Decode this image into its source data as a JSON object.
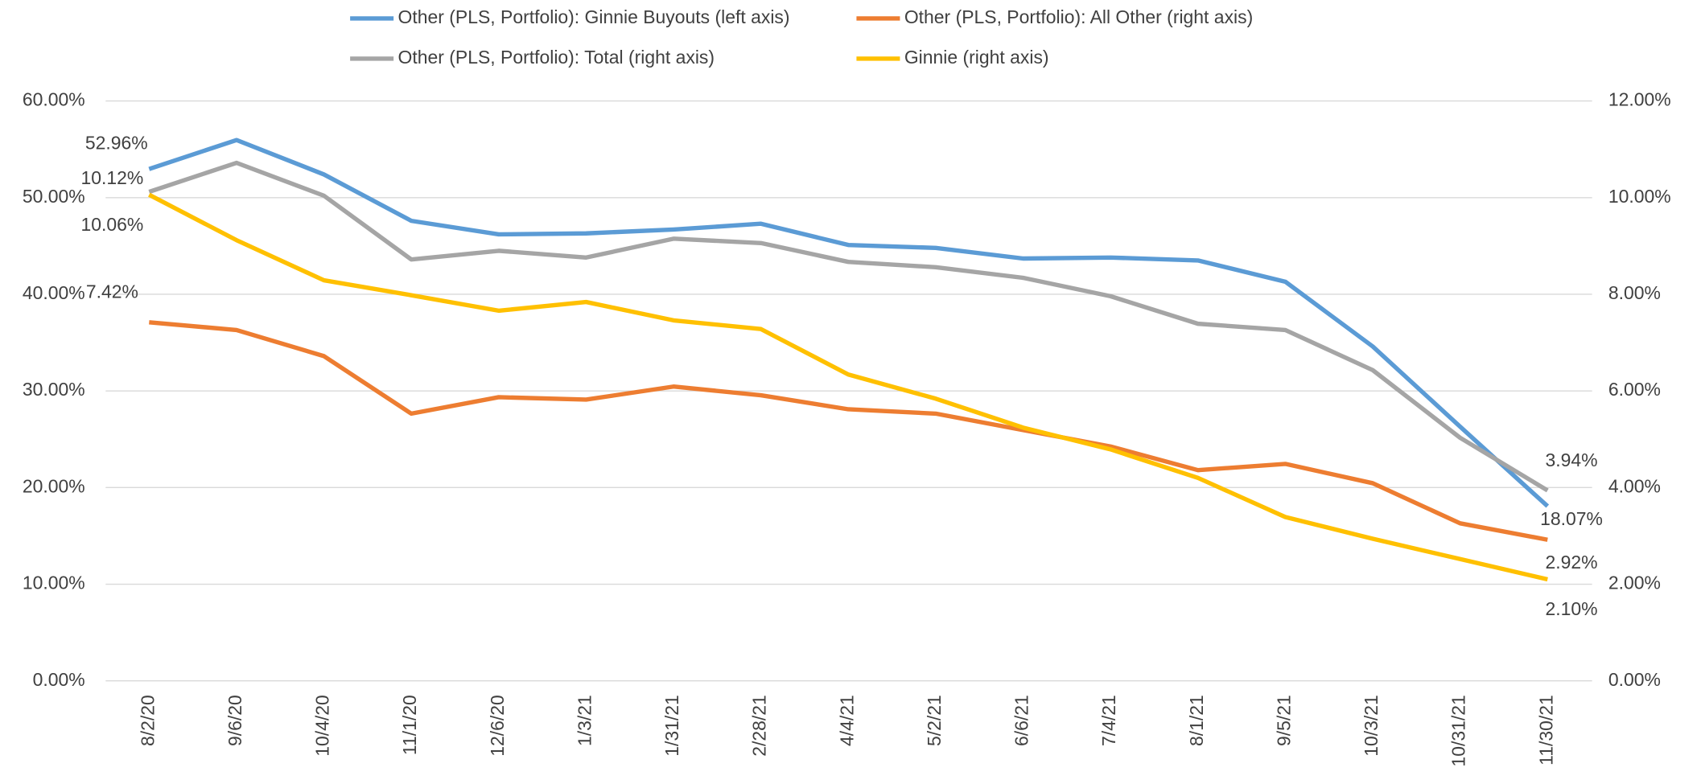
{
  "chart_data": {
    "type": "line",
    "categories": [
      "8/2/20",
      "9/6/20",
      "10/4/20",
      "11/1/20",
      "12/6/20",
      "1/3/21",
      "1/31/21",
      "2/28/21",
      "4/4/21",
      "5/2/21",
      "6/6/21",
      "7/4/21",
      "8/1/21",
      "9/5/21",
      "10/3/21",
      "10/31/21",
      "11/30/21"
    ],
    "series": [
      {
        "name": "Other (PLS, Portfolio): Ginnie Buyouts (left axis)",
        "color": "#5b9bd5",
        "axis": "y",
        "values": [
          52.96,
          55.96,
          52.4,
          47.6,
          46.2,
          46.3,
          46.7,
          47.3,
          45.1,
          44.8,
          43.7,
          43.8,
          43.5,
          41.3,
          34.6,
          26.3,
          18.07
        ],
        "value_labels": [
          "52.96%",
          null,
          null,
          null,
          null,
          null,
          null,
          null,
          null,
          null,
          null,
          null,
          null,
          null,
          null,
          null,
          "18.07%"
        ]
      },
      {
        "name": "Other (PLS, Portfolio): All Other (right axis)",
        "color": "#ed7d31",
        "axis": "y2",
        "values": [
          7.42,
          7.26,
          6.72,
          5.53,
          5.87,
          5.82,
          6.09,
          5.91,
          5.62,
          5.53,
          5.19,
          4.85,
          4.36,
          4.49,
          4.09,
          3.26,
          2.92
        ],
        "value_labels": [
          "7.42%",
          null,
          null,
          null,
          null,
          null,
          null,
          null,
          null,
          null,
          null,
          null,
          null,
          null,
          null,
          null,
          "2.92%"
        ]
      },
      {
        "name": "Other (PLS, Portfolio): Total (right axis)",
        "color": "#a5a5a5",
        "axis": "y2",
        "values": [
          10.12,
          10.72,
          10.04,
          8.72,
          8.9,
          8.76,
          9.15,
          9.06,
          8.67,
          8.56,
          8.34,
          7.96,
          7.39,
          7.26,
          6.43,
          5.03,
          3.94
        ],
        "value_labels": [
          "10.12%",
          null,
          null,
          null,
          null,
          null,
          null,
          null,
          null,
          null,
          null,
          null,
          null,
          null,
          null,
          null,
          "3.94%"
        ]
      },
      {
        "name": "Ginnie (right axis)",
        "color": "#ffc000",
        "axis": "y2",
        "values": [
          10.06,
          9.12,
          8.29,
          7.98,
          7.66,
          7.84,
          7.46,
          7.28,
          6.34,
          5.84,
          5.24,
          4.79,
          4.2,
          3.39,
          2.94,
          2.52,
          2.1
        ],
        "value_labels": [
          "10.06%",
          null,
          null,
          null,
          null,
          null,
          null,
          null,
          null,
          null,
          null,
          null,
          null,
          null,
          null,
          null,
          "2.10%"
        ]
      }
    ],
    "ylim": [
      0,
      60
    ],
    "yticks": [
      {
        "value": 0,
        "label": "0.00%"
      },
      {
        "value": 10,
        "label": "10.00%"
      },
      {
        "value": 20,
        "label": "20.00%"
      },
      {
        "value": 30,
        "label": "30.00%"
      },
      {
        "value": 40,
        "label": "40.00%"
      },
      {
        "value": 50,
        "label": "50.00%"
      },
      {
        "value": 60,
        "label": "60.00%"
      }
    ],
    "y2lim": [
      0,
      12
    ],
    "y2ticks": [
      {
        "value": 0,
        "label": "0.00%"
      },
      {
        "value": 2,
        "label": "2.00%"
      },
      {
        "value": 4,
        "label": "4.00%"
      },
      {
        "value": 6,
        "label": "6.00%"
      },
      {
        "value": 8,
        "label": "8.00%"
      },
      {
        "value": 10,
        "label": "10.00%"
      },
      {
        "value": 12,
        "label": "12.00%"
      }
    ],
    "grid": true,
    "legend": "top"
  }
}
